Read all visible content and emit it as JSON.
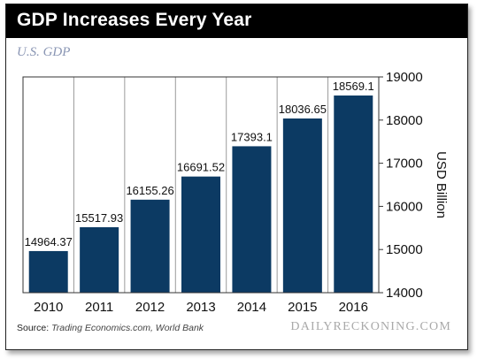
{
  "header": {
    "title": "GDP Increases Every Year",
    "subtitle": "U.S. GDP"
  },
  "footer": {
    "source_label": "Source:",
    "source_text": "Trading Economics.com, World Bank",
    "brand": "DAILYRECKONING.COM"
  },
  "colors": {
    "bar": "#0c3a63",
    "title_bar": "#000000",
    "subtitle": "#8a96b4"
  },
  "chart_data": {
    "type": "bar",
    "title": "GDP Increases Every Year",
    "subtitle": "U.S. GDP",
    "categories": [
      "2010",
      "2011",
      "2012",
      "2013",
      "2014",
      "2015",
      "2016"
    ],
    "values": [
      14964.37,
      15517.93,
      16155.26,
      16691.52,
      17393.1,
      18036.65,
      18569.1
    ],
    "value_labels": [
      "14964.37",
      "15517.93",
      "16155.26",
      "16691.52",
      "17393.1",
      "18036.65",
      "18569.1"
    ],
    "xlabel": "",
    "ylabel": "USD Billion",
    "ylim": [
      14000,
      19000
    ],
    "yticks": [
      14000,
      15000,
      16000,
      17000,
      18000,
      19000
    ],
    "ytick_labels": [
      "14000",
      "15000",
      "16000",
      "17000",
      "18000",
      "19000"
    ],
    "y_axis_side": "right",
    "grid": "vertical",
    "legend": "none"
  }
}
